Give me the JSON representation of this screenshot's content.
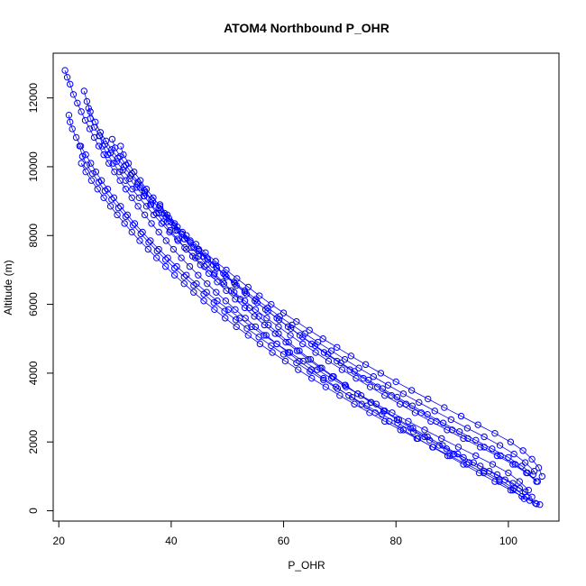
{
  "chart_data": {
    "type": "scatter",
    "title": "ATOM4 Northbound P_OHR",
    "xlabel": "P_OHR",
    "ylabel": "Altitude (m)",
    "xlim": [
      19,
      109
    ],
    "ylim": [
      -300,
      13300
    ],
    "xticks": [
      20,
      40,
      60,
      80,
      100
    ],
    "yticks": [
      0,
      2000,
      4000,
      6000,
      8000,
      10000,
      12000
    ],
    "grid": false,
    "legend": "none",
    "series": [
      {
        "color": "#0000ff",
        "marker": "open-circle",
        "connected": true,
        "x": [
          21.1,
          21.5,
          22.0,
          22.6,
          23.3,
          24.0,
          24.7,
          25.5,
          26.3,
          27.1,
          28.0,
          28.9,
          29.9,
          30.9,
          31.9,
          33.0,
          34.1,
          35.3,
          36.5,
          37.8,
          39.1,
          40.4,
          41.8,
          43.3,
          44.8,
          46.4,
          48.0,
          49.7,
          51.4,
          53.2,
          55.0,
          56.9,
          58.8,
          60.8,
          62.8,
          64.9,
          67.1,
          69.3,
          71.6,
          73.9,
          76.3,
          78.8,
          81.3,
          83.9,
          86.5,
          89.2,
          92.0,
          94.8,
          97.6,
          100.4,
          102.4,
          103.8,
          104.8,
          105.6
        ],
        "y": [
          12800,
          12600,
          12400,
          12100,
          11850,
          11600,
          11350,
          11100,
          10850,
          10600,
          10350,
          10100,
          9850,
          9600,
          9350,
          9100,
          8850,
          8600,
          8350,
          8100,
          7850,
          7600,
          7350,
          7100,
          6850,
          6600,
          6350,
          6100,
          5850,
          5600,
          5350,
          5100,
          4850,
          4600,
          4350,
          4100,
          3850,
          3600,
          3350,
          3100,
          2850,
          2600,
          2350,
          2100,
          1850,
          1600,
          1350,
          1100,
          850,
          600,
          420,
          300,
          220,
          180
        ]
      },
      {
        "color": "#0000ff",
        "marker": "open-circle",
        "connected": true,
        "x": [
          21.8,
          22.0,
          22.4,
          23.1,
          23.9,
          24.8,
          25.7,
          26.6,
          27.6,
          28.7,
          29.8,
          31.0,
          32.2,
          33.5,
          34.9,
          36.3,
          37.8,
          39.4,
          41.0,
          42.7,
          44.5,
          46.3,
          48.2,
          50.2,
          52.2,
          54.3,
          56.5,
          58.8,
          61.1,
          63.5,
          66.0,
          68.5,
          71.1,
          73.8,
          76.5,
          79.3,
          82.2,
          85.1,
          88.1,
          91.1,
          94.2,
          97.2,
          100.0,
          102.0,
          103.6
        ],
        "y": [
          11500,
          11300,
          11100,
          10850,
          10600,
          10350,
          10100,
          9850,
          9600,
          9350,
          9100,
          8850,
          8600,
          8350,
          8100,
          7850,
          7600,
          7350,
          7100,
          6850,
          6600,
          6350,
          6100,
          5850,
          5600,
          5350,
          5100,
          4850,
          4600,
          4350,
          4100,
          3850,
          3600,
          3350,
          3100,
          2850,
          2600,
          2350,
          2100,
          1850,
          1600,
          1350,
          1100,
          850,
          600
        ]
      },
      {
        "color": "#0000ff",
        "marker": "open-circle",
        "connected": true,
        "x": [
          24.5,
          25.0,
          25.6,
          26.5,
          27.4,
          28.4,
          29.4,
          30.5,
          31.6,
          32.8,
          34.0,
          35.3,
          36.7,
          38.1,
          39.6,
          41.1,
          42.7,
          44.4,
          46.1,
          47.9,
          49.8,
          51.7,
          53.7,
          55.7,
          57.8,
          60.0,
          62.3,
          64.6,
          67.0,
          69.5,
          72.0,
          74.6,
          77.3,
          80.0,
          82.8,
          85.7,
          88.6,
          91.6,
          94.6,
          97.6,
          100.4,
          102.6,
          104.2,
          105.4,
          106.0
        ],
        "y": [
          12200,
          11900,
          11600,
          11300,
          11000,
          10750,
          10500,
          10250,
          10000,
          9750,
          9500,
          9250,
          9000,
          8750,
          8500,
          8250,
          8000,
          7750,
          7500,
          7250,
          7000,
          6750,
          6500,
          6250,
          6000,
          5750,
          5500,
          5250,
          5000,
          4750,
          4500,
          4250,
          4000,
          3750,
          3500,
          3250,
          3000,
          2750,
          2500,
          2250,
          2000,
          1750,
          1500,
          1250,
          1000
        ]
      },
      {
        "color": "#0000ff",
        "marker": "open-circle",
        "connected": true,
        "x": [
          25.3,
          25.6,
          26.3,
          27.2,
          28.2,
          29.2,
          30.3,
          31.4,
          32.6,
          33.8,
          35.1,
          36.4,
          37.8,
          39.3,
          40.8,
          42.4,
          44.0,
          45.7,
          47.5,
          49.3,
          51.2,
          53.1,
          55.1,
          57.2,
          59.3,
          61.5,
          63.8,
          66.1,
          68.5,
          70.9,
          73.4,
          76.0,
          78.6,
          81.3,
          84.1,
          86.9,
          89.8,
          92.7,
          95.7,
          98.5,
          101.0,
          103.0,
          104.6
        ],
        "y": [
          11700,
          11400,
          11150,
          10900,
          10650,
          10400,
          10150,
          9900,
          9650,
          9400,
          9150,
          8900,
          8650,
          8400,
          8150,
          7900,
          7650,
          7400,
          7150,
          6900,
          6650,
          6400,
          6150,
          5900,
          5650,
          5400,
          5150,
          4900,
          4650,
          4400,
          4150,
          3900,
          3650,
          3400,
          3150,
          2900,
          2650,
          2400,
          2150,
          1900,
          1650,
          1400,
          1150
        ]
      },
      {
        "color": "#0000ff",
        "marker": "open-circle",
        "connected": true,
        "x": [
          23.7,
          24.2,
          25.0,
          26.0,
          27.1,
          28.2,
          29.4,
          30.6,
          31.9,
          33.2,
          34.6,
          36.0,
          37.5,
          39.0,
          40.6,
          42.3,
          44.0,
          45.8,
          47.6,
          49.5,
          51.5,
          53.5,
          55.6,
          57.8,
          60.0,
          62.3,
          64.7,
          67.1,
          69.6,
          72.2,
          74.8,
          77.5,
          80.3,
          83.1,
          86.0,
          89.0,
          92.0,
          95.0,
          98.0,
          100.8,
          103.0
        ],
        "y": [
          10600,
          10300,
          10050,
          9800,
          9550,
          9300,
          9050,
          8800,
          8550,
          8300,
          8050,
          7800,
          7550,
          7300,
          7050,
          6800,
          6550,
          6300,
          6050,
          5800,
          5550,
          5300,
          5050,
          4800,
          4550,
          4300,
          4050,
          3800,
          3550,
          3300,
          3050,
          2800,
          2550,
          2300,
          2050,
          1800,
          1550,
          1300,
          1050,
          800,
          550
        ]
      },
      {
        "color": "#0000ff",
        "marker": "open-circle",
        "connected": true,
        "x": [
          27.3,
          27.8,
          28.7,
          29.7,
          30.8,
          31.9,
          33.1,
          34.3,
          35.6,
          36.9,
          38.3,
          39.7,
          41.2,
          42.7,
          44.3,
          45.9,
          47.6,
          49.4,
          51.2,
          53.1,
          55.0,
          57.0,
          59.1,
          61.2,
          63.4,
          65.7,
          68.0,
          70.4,
          72.9,
          75.4,
          78.0,
          80.7,
          83.4,
          86.2,
          89.1,
          92.0,
          95.0,
          98.0,
          100.8,
          103.2,
          105.0
        ],
        "y": [
          10900,
          10600,
          10350,
          10100,
          9850,
          9600,
          9350,
          9100,
          8850,
          8600,
          8350,
          8100,
          7850,
          7600,
          7350,
          7100,
          6850,
          6600,
          6350,
          6100,
          5850,
          5600,
          5350,
          5100,
          4850,
          4600,
          4350,
          4100,
          3850,
          3600,
          3350,
          3100,
          2850,
          2600,
          2350,
          2100,
          1850,
          1600,
          1350,
          1100,
          850
        ]
      },
      {
        "color": "#0000ff",
        "marker": "open-circle",
        "connected": true,
        "x": [
          29.5,
          30.0,
          30.9,
          31.9,
          33.0,
          34.1,
          35.3,
          36.5,
          37.8,
          39.1,
          40.5,
          41.9,
          43.4,
          44.9,
          46.5,
          48.1,
          49.8,
          51.6,
          53.4,
          55.3,
          57.2,
          59.2,
          61.3,
          63.4,
          65.6,
          67.9,
          70.2,
          72.6,
          75.1,
          77.6,
          80.2,
          82.9,
          85.6,
          88.4,
          91.3,
          94.2,
          97.1,
          100.0,
          102.4,
          104.4
        ],
        "y": [
          10800,
          10550,
          10300,
          10050,
          9800,
          9550,
          9300,
          9050,
          8800,
          8550,
          8300,
          8050,
          7800,
          7550,
          7300,
          7050,
          6800,
          6550,
          6300,
          6050,
          5800,
          5550,
          5300,
          5050,
          4800,
          4550,
          4300,
          4050,
          3800,
          3550,
          3300,
          3050,
          2800,
          2550,
          2300,
          2050,
          1800,
          1550,
          1300,
          1050
        ]
      },
      {
        "color": "#0000ff",
        "marker": "open-circle",
        "connected": true,
        "x": [
          31.0,
          31.5,
          32.4,
          33.4,
          34.5,
          35.6,
          36.8,
          38.0,
          39.3,
          40.6,
          42.0,
          43.4,
          44.9,
          46.4,
          48.0,
          49.6,
          51.3,
          53.1,
          54.9,
          56.8,
          58.8,
          60.8,
          62.9,
          65.0,
          67.2,
          69.5,
          71.8,
          74.2,
          76.7,
          79.2,
          81.8,
          84.5,
          87.2,
          90.0,
          92.8,
          95.7,
          98.6,
          101.2,
          103.4,
          105.2
        ],
        "y": [
          10600,
          10350,
          10100,
          9850,
          9600,
          9350,
          9100,
          8850,
          8600,
          8350,
          8100,
          7850,
          7600,
          7350,
          7100,
          6850,
          6600,
          6350,
          6100,
          5850,
          5600,
          5350,
          5100,
          4850,
          4600,
          4350,
          4100,
          3850,
          3600,
          3350,
          3100,
          2850,
          2600,
          2350,
          2100,
          1850,
          1600,
          1350,
          1100,
          850
        ]
      },
      {
        "color": "#0000ff",
        "marker": "open-circle",
        "connected": true,
        "x": [
          24.0,
          24.8,
          25.8,
          26.9,
          28.0,
          29.2,
          30.4,
          31.7,
          33.0,
          34.4,
          35.9,
          37.4,
          39.0,
          40.6,
          42.3,
          44.0,
          45.8,
          47.7,
          49.6,
          51.6,
          53.7,
          55.8,
          58.0,
          60.3,
          62.6,
          65.0,
          67.5,
          70.0,
          72.6,
          75.3,
          78.0,
          80.8,
          83.7,
          86.6,
          89.6,
          92.6,
          95.6,
          98.4,
          100.8,
          102.8
        ],
        "y": [
          10100,
          9850,
          9600,
          9350,
          9100,
          8850,
          8600,
          8350,
          8100,
          7850,
          7600,
          7350,
          7100,
          6850,
          6600,
          6350,
          6100,
          5850,
          5600,
          5350,
          5100,
          4850,
          4600,
          4350,
          4100,
          3850,
          3600,
          3350,
          3100,
          2850,
          2600,
          2350,
          2100,
          1850,
          1600,
          1350,
          1100,
          850,
          600,
          350
        ]
      },
      {
        "color": "#0000ff",
        "marker": "open-circle",
        "connected": true,
        "x": [
          34.5,
          35.2,
          36.3,
          37.4,
          38.6,
          39.8,
          41.1,
          42.4,
          43.8,
          45.2,
          46.7,
          48.2,
          49.8,
          51.4,
          53.1,
          54.8,
          56.6,
          58.5,
          60.4,
          62.4,
          64.4,
          66.5,
          68.7,
          70.9,
          73.2,
          75.6,
          78.0,
          80.5,
          83.0,
          85.6,
          88.3,
          91.0,
          93.8,
          96.6,
          99.4,
          102.0,
          104.2
        ],
        "y": [
          9400,
          9150,
          8900,
          8650,
          8400,
          8150,
          7900,
          7650,
          7400,
          7150,
          6900,
          6650,
          6400,
          6150,
          5900,
          5650,
          5400,
          5150,
          4900,
          4650,
          4400,
          4150,
          3900,
          3650,
          3400,
          3150,
          2900,
          2650,
          2400,
          2150,
          1900,
          1650,
          1400,
          1150,
          900,
          650,
          400
        ]
      },
      {
        "color": "#0000ff",
        "marker": "open-circle",
        "connected": true,
        "x": [
          38.0,
          38.8,
          39.9,
          41.1,
          42.3,
          43.6,
          44.9,
          46.3,
          47.7,
          49.2,
          50.7,
          52.3,
          53.9,
          55.6,
          57.3,
          59.1,
          60.9,
          62.8,
          64.8,
          66.8,
          68.9,
          71.0,
          73.2,
          75.5,
          77.8,
          80.2,
          82.6,
          85.1,
          87.7,
          90.3,
          93.0,
          95.7,
          98.4,
          101.0,
          103.2,
          105.0
        ],
        "y": [
          8900,
          8650,
          8400,
          8150,
          7900,
          7650,
          7400,
          7150,
          6900,
          6650,
          6400,
          6150,
          5900,
          5650,
          5400,
          5150,
          4900,
          4650,
          4400,
          4150,
          3900,
          3650,
          3400,
          3150,
          2900,
          2650,
          2400,
          2150,
          1900,
          1650,
          1400,
          1150,
          900,
          650,
          400,
          200
        ]
      }
    ]
  }
}
